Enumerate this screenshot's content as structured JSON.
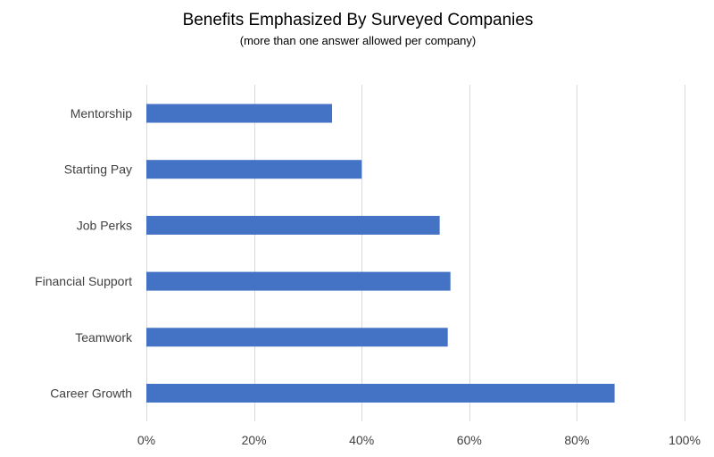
{
  "chart_data": {
    "type": "bar",
    "orientation": "horizontal",
    "title": "Benefits Emphasized By Surveyed Companies",
    "subtitle": "(more than one answer allowed per company)",
    "categories": [
      "Mentorship",
      "Starting Pay",
      "Job Perks",
      "Financial Support",
      "Teamwork",
      "Career Growth"
    ],
    "values": [
      34.5,
      40,
      54.5,
      56.5,
      56,
      87
    ],
    "xlim": [
      0,
      100
    ],
    "xticks": [
      0,
      20,
      40,
      60,
      80,
      100
    ],
    "tick_labels": [
      "0%",
      "20%",
      "40%",
      "60%",
      "80%",
      "100%"
    ],
    "xlabel": "",
    "ylabel": "",
    "grid": true,
    "bar_color": "#4472c4"
  }
}
